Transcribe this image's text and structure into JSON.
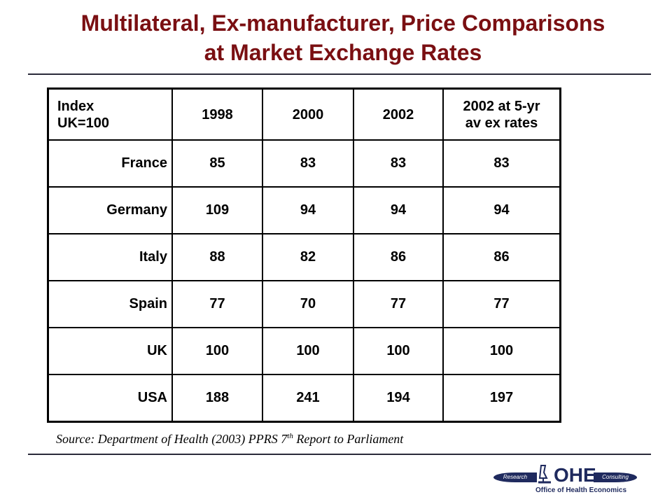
{
  "title_line1": "Multilateral, Ex-manufacturer, Price Comparisons",
  "title_line2": "at Market Exchange Rates",
  "table": {
    "corner_line1": "Index",
    "corner_line2": "UK=100",
    "headers": [
      "1998",
      "2000",
      "2002"
    ],
    "last_header_line1": "2002 at 5-yr",
    "last_header_line2": "av ex rates",
    "rows": [
      {
        "country": "France",
        "values": [
          "85",
          "83",
          "83",
          "83"
        ]
      },
      {
        "country": "Germany",
        "values": [
          "109",
          "94",
          "94",
          "94"
        ]
      },
      {
        "country": "Italy",
        "values": [
          "88",
          "82",
          "86",
          "86"
        ]
      },
      {
        "country": "Spain",
        "values": [
          "77",
          "70",
          "77",
          "77"
        ]
      },
      {
        "country": "UK",
        "values": [
          "100",
          "100",
          "100",
          "100"
        ]
      },
      {
        "country": "USA",
        "values": [
          "188",
          "241",
          "194",
          "197"
        ]
      }
    ]
  },
  "source": {
    "prefix": "Source: Department of Health (2003) PPRS 7",
    "sup": "th",
    "suffix": " Report to Parliament"
  },
  "logo": {
    "left_pill": "Research",
    "brand": "OHE",
    "right_pill": "Consulting",
    "tagline": "Office of Health Economics",
    "color": "#1f2a5e"
  },
  "colors": {
    "title": "#7a0f12"
  }
}
